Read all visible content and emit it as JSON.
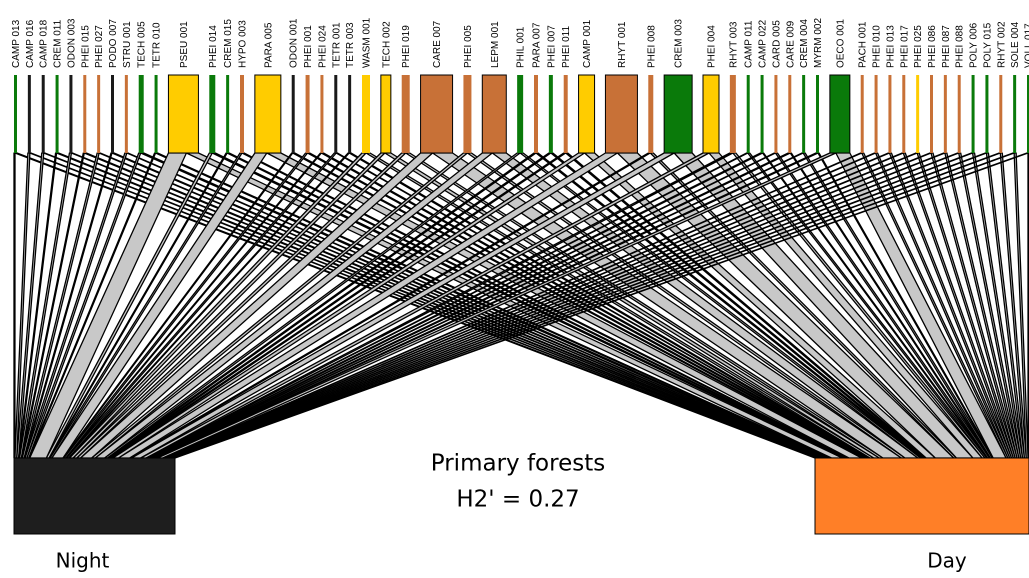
{
  "title": "Primary forests",
  "metric": "H2' = 0.27",
  "bottom_nodes": [
    {
      "label": "Night",
      "color": "#1e1e1e"
    },
    {
      "label": "Day",
      "color": "#ff7f27"
    }
  ],
  "top_nodes": [
    {
      "label": "CAMP 013",
      "color": "#0a7a0a",
      "night": 1,
      "day": 2
    },
    {
      "label": "CAMP 016",
      "color": "#1a1a1a",
      "night": 2,
      "day": 1
    },
    {
      "label": "CAMP 018",
      "color": "#1a1a1a",
      "night": 2,
      "day": 1
    },
    {
      "label": "CREM 011",
      "color": "#0a7a0a",
      "night": 1,
      "day": 2
    },
    {
      "label": "ODON 003",
      "color": "#1a1a1a",
      "night": 2,
      "day": 1
    },
    {
      "label": "PHEI 015",
      "color": "#c87137",
      "night": 1,
      "day": 2
    },
    {
      "label": "PHEI 027",
      "color": "#c87137",
      "night": 2,
      "day": 1
    },
    {
      "label": "PODO 007",
      "color": "#1a1a1a",
      "night": 1,
      "day": 2
    },
    {
      "label": "STRU 001",
      "color": "#c87137",
      "night": 2,
      "day": 1
    },
    {
      "label": "TECH 005",
      "color": "#0a7a0a",
      "night": 2,
      "day": 3
    },
    {
      "label": "TETR 010",
      "color": "#0a7a0a",
      "night": 1,
      "day": 2
    },
    {
      "label": "PSEU 001",
      "color": "#ffcc00",
      "night": 18,
      "day": 12
    },
    {
      "label": "PHEI 014",
      "color": "#0a7a0a",
      "night": 3,
      "day": 3
    },
    {
      "label": "CREM 015",
      "color": "#0a7a0a",
      "night": 1,
      "day": 2
    },
    {
      "label": "HYPO 003",
      "color": "#c87137",
      "night": 2,
      "day": 2
    },
    {
      "label": "PARA 005",
      "color": "#ffcc00",
      "night": 12,
      "day": 14
    },
    {
      "label": "ODON 001",
      "color": "#1a1a1a",
      "night": 1,
      "day": 2
    },
    {
      "label": "PHEI 001",
      "color": "#c87137",
      "night": 2,
      "day": 2
    },
    {
      "label": "PHEI 024",
      "color": "#c87137",
      "night": 1,
      "day": 2
    },
    {
      "label": "TETR 001",
      "color": "#1a1a1a",
      "night": 2,
      "day": 1
    },
    {
      "label": "TETR 003",
      "color": "#1a1a1a",
      "night": 1,
      "day": 2
    },
    {
      "label": "WASM 001",
      "color": "#ffcc00",
      "night": 4,
      "day": 4
    },
    {
      "label": "TECH 002",
      "color": "#ffcc00",
      "night": 4,
      "day": 6
    },
    {
      "label": "PHEI 019",
      "color": "#c87137",
      "night": 4,
      "day": 4
    },
    {
      "label": "CARE 007",
      "color": "#c87137",
      "night": 12,
      "day": 20
    },
    {
      "label": "PHEI 005",
      "color": "#c87137",
      "night": 4,
      "day": 4
    },
    {
      "label": "LEPM 001",
      "color": "#c87137",
      "night": 10,
      "day": 14
    },
    {
      "label": "PHIL 001",
      "color": "#0a7a0a",
      "night": 3,
      "day": 3
    },
    {
      "label": "PARA 007",
      "color": "#c87137",
      "night": 2,
      "day": 2
    },
    {
      "label": "PHEI 007",
      "color": "#0a7a0a",
      "night": 2,
      "day": 2
    },
    {
      "label": "PHEI 011",
      "color": "#c87137",
      "night": 2,
      "day": 2
    },
    {
      "label": "CAMP 001",
      "color": "#ffcc00",
      "night": 6,
      "day": 10
    },
    {
      "label": "RHYT 001",
      "color": "#c87137",
      "night": 12,
      "day": 20
    },
    {
      "label": "PHEI 008",
      "color": "#c87137",
      "night": 2,
      "day": 3
    },
    {
      "label": "CREM 003",
      "color": "#0a7a0a",
      "night": 10,
      "day": 18
    },
    {
      "label": "PHEI 004",
      "color": "#ffcc00",
      "night": 6,
      "day": 10
    },
    {
      "label": "RHYT 003",
      "color": "#c87137",
      "night": 3,
      "day": 3
    },
    {
      "label": "CAMP 011",
      "color": "#0a7a0a",
      "night": 1,
      "day": 2
    },
    {
      "label": "CAMP 022",
      "color": "#0a7a0a",
      "night": 2,
      "day": 1
    },
    {
      "label": "CARD 005",
      "color": "#c87137",
      "night": 1,
      "day": 2
    },
    {
      "label": "CARE 009",
      "color": "#c87137",
      "night": 2,
      "day": 1
    },
    {
      "label": "CREM 004",
      "color": "#0a7a0a",
      "night": 1,
      "day": 2
    },
    {
      "label": "MYRM 002",
      "color": "#0a7a0a",
      "night": 2,
      "day": 1
    },
    {
      "label": "OECO 001",
      "color": "#0a7a0a",
      "night": 6,
      "day": 14
    },
    {
      "label": "PACH 001",
      "color": "#c87137",
      "night": 1,
      "day": 2
    },
    {
      "label": "PHEI 010",
      "color": "#c87137",
      "night": 1,
      "day": 2
    },
    {
      "label": "PHEI 013",
      "color": "#c87137",
      "night": 1,
      "day": 2
    },
    {
      "label": "PHEI 017",
      "color": "#c87137",
      "night": 1,
      "day": 2
    },
    {
      "label": "PHEI 025",
      "color": "#ffcc00",
      "night": 1,
      "day": 2
    },
    {
      "label": "PHEI 086",
      "color": "#c87137",
      "night": 1,
      "day": 2
    },
    {
      "label": "PHEI 087",
      "color": "#c87137",
      "night": 1,
      "day": 2
    },
    {
      "label": "PHEI 088",
      "color": "#c87137",
      "night": 1,
      "day": 2
    },
    {
      "label": "POLY 006",
      "color": "#0a7a0a",
      "night": 1,
      "day": 2
    },
    {
      "label": "POLY 015",
      "color": "#0a7a0a",
      "night": 1,
      "day": 2
    },
    {
      "label": "RHYT 002",
      "color": "#c87137",
      "night": 1,
      "day": 2
    },
    {
      "label": "SOLE 004",
      "color": "#0a7a0a",
      "night": 1,
      "day": 2
    },
    {
      "label": "VOLL 017",
      "color": "#0a7a0a",
      "night": 1,
      "day": 1
    }
  ]
}
